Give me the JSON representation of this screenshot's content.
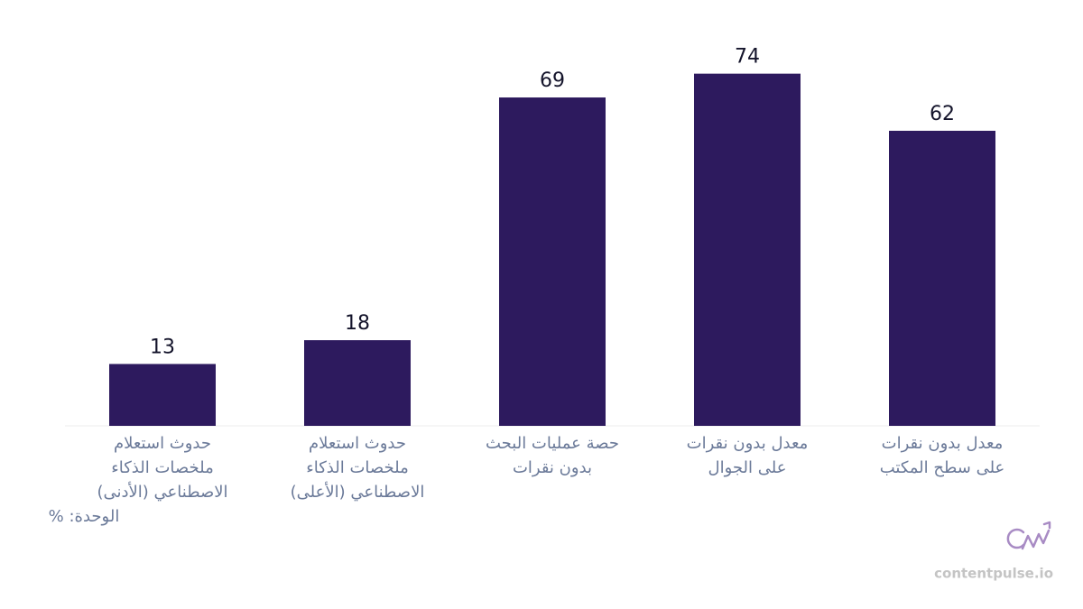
{
  "chart_data": {
    "type": "bar",
    "categories": [
      "حدوث استعلام\nملخصات الذكاء\nالاصطناعي (الأدنى)",
      "حدوث استعلام\nملخصات الذكاء\nالاصطناعي (الأعلى)",
      "حصة عمليات البحث\nبدون نقرات",
      "معدل بدون نقرات\nعلى الجوال",
      "معدل بدون نقرات\nعلى سطح المكتب"
    ],
    "values": [
      13,
      18,
      69,
      74,
      62
    ],
    "color": "#2d1a5e",
    "ylim": [
      0,
      80
    ],
    "unit_label": "الوحدة: %",
    "source": "contentpulse.io"
  }
}
